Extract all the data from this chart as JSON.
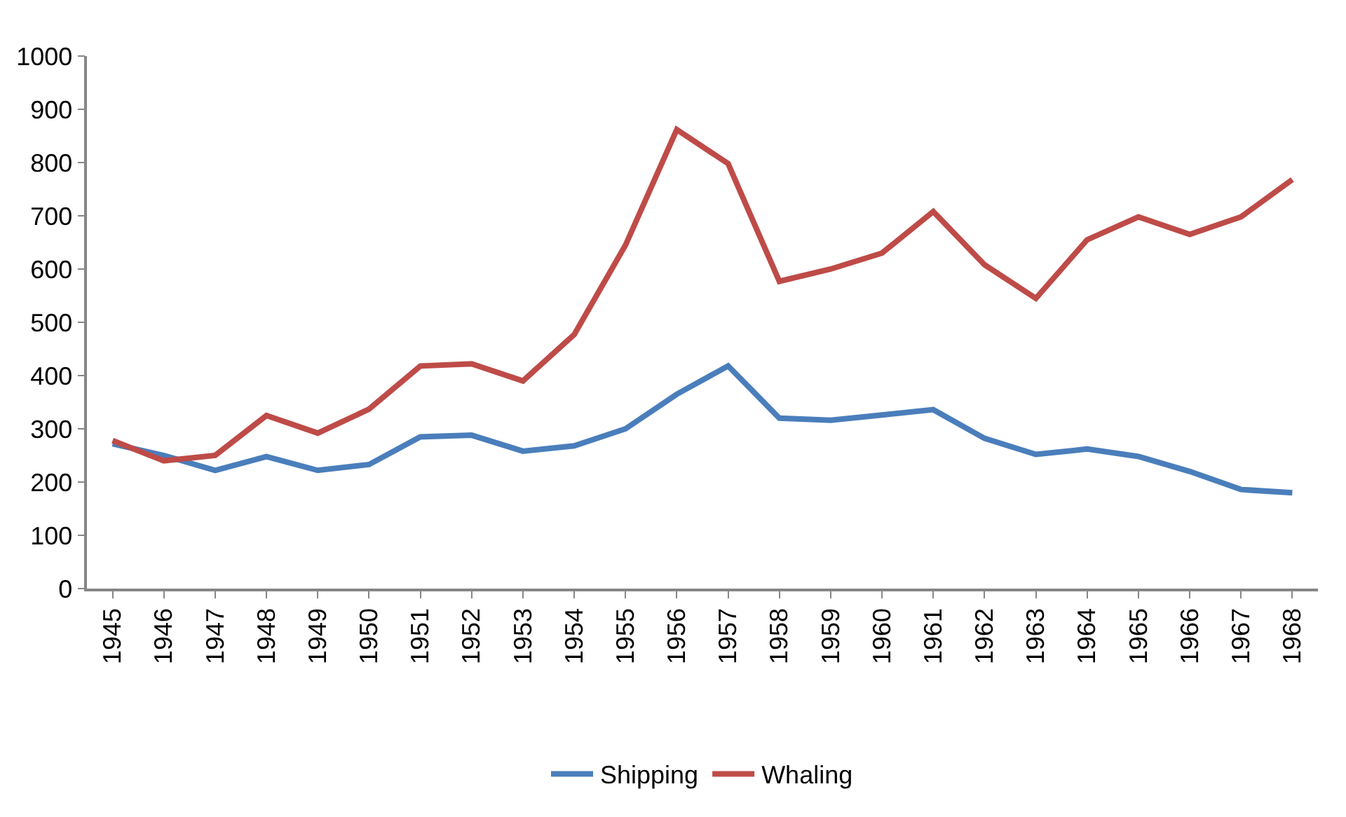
{
  "chart_data": {
    "type": "line",
    "categories": [
      "1945",
      "1946",
      "1947",
      "1948",
      "1949",
      "1950",
      "1951",
      "1952",
      "1953",
      "1954",
      "1955",
      "1956",
      "1957",
      "1958",
      "1959",
      "1960",
      "1961",
      "1962",
      "1963",
      "1964",
      "1965",
      "1966",
      "1967",
      "1968"
    ],
    "series": [
      {
        "name": "Shipping",
        "color": "#4a7ebb",
        "values": [
          272,
          250,
          222,
          248,
          222,
          233,
          285,
          288,
          258,
          268,
          300,
          365,
          418,
          320,
          316,
          326,
          336,
          282,
          252,
          262,
          248,
          220,
          186,
          180
        ]
      },
      {
        "name": "Whaling",
        "color": "#be4b48",
        "values": [
          278,
          240,
          250,
          325,
          292,
          337,
          418,
          422,
          390,
          477,
          645,
          862,
          798,
          577,
          600,
          630,
          708,
          608,
          545,
          655,
          698,
          665,
          698,
          768
        ]
      }
    ],
    "ylim": [
      0,
      1000
    ],
    "yticks": [
      0,
      100,
      200,
      300,
      400,
      500,
      600,
      700,
      800,
      900,
      1000
    ],
    "grid": false,
    "legend": "bottom",
    "marker": "none",
    "line_style": "solid"
  }
}
